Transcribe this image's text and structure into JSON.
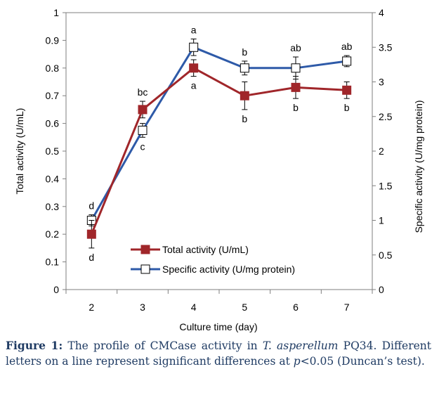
{
  "chart_data": {
    "type": "line",
    "title": "",
    "xlabel": "Culture time (day)",
    "ylabel": "Total activity (U/mL)",
    "y2label": "Specific activity (U/mg protein)",
    "x": [
      2,
      3,
      4,
      5,
      6,
      7
    ],
    "x_ticks": [
      "2",
      "3",
      "4",
      "5",
      "6",
      "7"
    ],
    "ylim": [
      0,
      1
    ],
    "y_ticks": [
      "0",
      "0.1",
      "0.2",
      "0.3",
      "0.4",
      "0.5",
      "0.6",
      "0.7",
      "0.8",
      "0.9",
      "1"
    ],
    "y2lim": [
      0,
      4
    ],
    "y2_ticks": [
      "0",
      "0.5",
      "1",
      "1.5",
      "2",
      "2.5",
      "3",
      "3.5",
      "4"
    ],
    "grid": false,
    "legend_position": "bottom-center",
    "series": [
      {
        "name": "Total activity (U/mL)",
        "axis": "left",
        "color": "#a0262a",
        "marker": "filled-square",
        "values": [
          0.2,
          0.65,
          0.8,
          0.7,
          0.73,
          0.72
        ],
        "errors": [
          0.05,
          0.03,
          0.03,
          0.05,
          0.04,
          0.03
        ],
        "letters": [
          "d",
          "bc",
          "a",
          "b",
          "b",
          "b"
        ]
      },
      {
        "name": "Specific activity (U/mg protein)",
        "axis": "right",
        "color": "#2e5aa8",
        "marker": "open-square",
        "values": [
          1.0,
          2.3,
          3.5,
          3.2,
          3.2,
          3.3
        ],
        "errors": [
          0.08,
          0.1,
          0.12,
          0.1,
          0.16,
          0.08
        ],
        "letters": [
          "d",
          "c",
          "a",
          "b",
          "ab",
          "ab"
        ]
      }
    ]
  },
  "caption": {
    "label": "Figure 1:",
    "text_before": " The profile of CMCase activity in ",
    "species": "T. asperellum",
    "text_mid": " PQ34. Different letters on a line represent significant differences at ",
    "p": "p",
    "text_after": "<0.05 (Duncan’s test)."
  }
}
